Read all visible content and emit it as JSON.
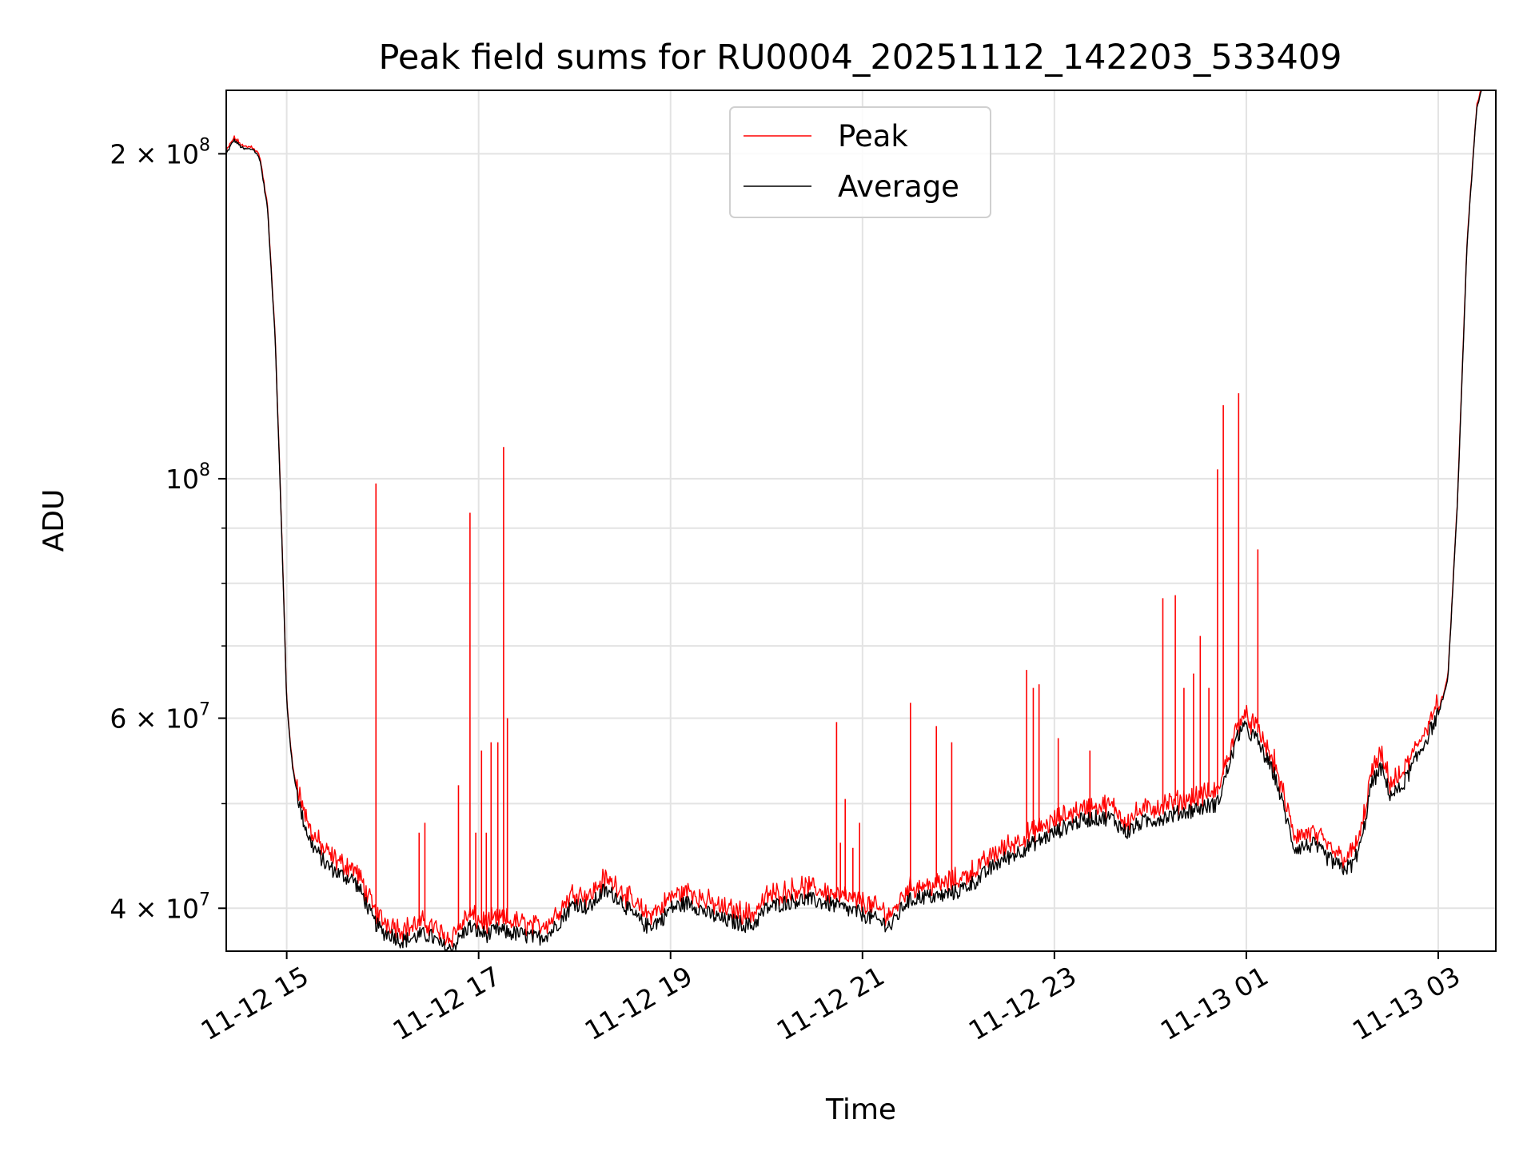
{
  "chart_data": {
    "type": "line",
    "title": "Peak field sums for RU0004_20251112_142203_533409",
    "xlabel": "Time",
    "ylabel": "ADU",
    "yscale": "log",
    "grid": true,
    "legend_position": "top-center",
    "x_unit": "hours since 11-12 00:00",
    "xlim": [
      14.37,
      27.6
    ],
    "ylim": [
      36500000,
      229000000
    ],
    "x_ticks": [
      {
        "value": 15,
        "label": "11-12 15"
      },
      {
        "value": 17,
        "label": "11-12 17"
      },
      {
        "value": 19,
        "label": "11-12 19"
      },
      {
        "value": 21,
        "label": "11-12 21"
      },
      {
        "value": 23,
        "label": "11-12 23"
      },
      {
        "value": 25,
        "label": "11-13 01"
      },
      {
        "value": 27,
        "label": "11-13 03"
      }
    ],
    "y_major_ticks": [
      {
        "value": 40000000,
        "mantissa": "4",
        "exponent": "7"
      },
      {
        "value": 60000000,
        "mantissa": "6",
        "exponent": "7"
      },
      {
        "value": 100000000,
        "mantissa": "",
        "exponent": "8"
      },
      {
        "value": 200000000,
        "mantissa": "2",
        "exponent": "8"
      }
    ],
    "y_minor_ticks": [
      50000000,
      70000000,
      80000000,
      90000000
    ],
    "series": [
      {
        "name": "Peak",
        "color": "#ff0000",
        "baseline_offset": 0.03,
        "spikes": [
          {
            "x": 15.93,
            "y": 99000000
          },
          {
            "x": 16.38,
            "y": 47000000
          },
          {
            "x": 16.44,
            "y": 48000000
          },
          {
            "x": 16.79,
            "y": 52000000
          },
          {
            "x": 16.91,
            "y": 93000000
          },
          {
            "x": 16.97,
            "y": 47000000
          },
          {
            "x": 17.03,
            "y": 56000000
          },
          {
            "x": 17.08,
            "y": 47000000
          },
          {
            "x": 17.13,
            "y": 57000000
          },
          {
            "x": 17.2,
            "y": 57000000
          },
          {
            "x": 17.26,
            "y": 107000000
          },
          {
            "x": 17.3,
            "y": 60000000
          },
          {
            "x": 20.73,
            "y": 59500000
          },
          {
            "x": 20.77,
            "y": 46000000
          },
          {
            "x": 20.82,
            "y": 50500000
          },
          {
            "x": 20.9,
            "y": 45500000
          },
          {
            "x": 20.97,
            "y": 48000000
          },
          {
            "x": 21.5,
            "y": 62000000
          },
          {
            "x": 21.77,
            "y": 59000000
          },
          {
            "x": 21.93,
            "y": 57000000
          },
          {
            "x": 22.71,
            "y": 66500000
          },
          {
            "x": 22.78,
            "y": 64000000
          },
          {
            "x": 22.84,
            "y": 64500000
          },
          {
            "x": 23.04,
            "y": 57500000
          },
          {
            "x": 23.37,
            "y": 56000000
          },
          {
            "x": 24.13,
            "y": 77500000
          },
          {
            "x": 24.26,
            "y": 78000000
          },
          {
            "x": 24.35,
            "y": 64000000
          },
          {
            "x": 24.45,
            "y": 66000000
          },
          {
            "x": 24.52,
            "y": 71500000
          },
          {
            "x": 24.61,
            "y": 64000000
          },
          {
            "x": 24.7,
            "y": 102000000
          },
          {
            "x": 24.76,
            "y": 117000000
          },
          {
            "x": 24.92,
            "y": 120000000
          },
          {
            "x": 25.12,
            "y": 86000000
          }
        ]
      },
      {
        "name": "Average",
        "color": "#000000",
        "points": [
          [
            14.37,
            200000000
          ],
          [
            14.45,
            206000000
          ],
          [
            14.55,
            202000000
          ],
          [
            14.65,
            202000000
          ],
          [
            14.72,
            198000000
          ],
          [
            14.8,
            178000000
          ],
          [
            14.88,
            135000000
          ],
          [
            14.95,
            88000000
          ],
          [
            15.0,
            62000000
          ],
          [
            15.06,
            54000000
          ],
          [
            15.15,
            49000000
          ],
          [
            15.25,
            46000000
          ],
          [
            15.4,
            44000000
          ],
          [
            15.55,
            43000000
          ],
          [
            15.7,
            42500000
          ],
          [
            15.8,
            41000000
          ],
          [
            15.9,
            39000000
          ],
          [
            16.0,
            38000000
          ],
          [
            16.1,
            37800000
          ],
          [
            16.2,
            37300000
          ],
          [
            16.3,
            37500000
          ],
          [
            16.4,
            37800000
          ],
          [
            16.5,
            37700000
          ],
          [
            16.6,
            37000000
          ],
          [
            16.7,
            36600000
          ],
          [
            16.8,
            37500000
          ],
          [
            16.9,
            38500000
          ],
          [
            17.0,
            38000000
          ],
          [
            17.1,
            37800000
          ],
          [
            17.2,
            38200000
          ],
          [
            17.3,
            38000000
          ],
          [
            17.45,
            37800000
          ],
          [
            17.6,
            37500000
          ],
          [
            17.75,
            38000000
          ],
          [
            17.9,
            39500000
          ],
          [
            18.0,
            40500000
          ],
          [
            18.15,
            40000000
          ],
          [
            18.3,
            41500000
          ],
          [
            18.45,
            41000000
          ],
          [
            18.6,
            39500000
          ],
          [
            18.75,
            38500000
          ],
          [
            18.9,
            39000000
          ],
          [
            19.0,
            40000000
          ],
          [
            19.2,
            40500000
          ],
          [
            19.4,
            39500000
          ],
          [
            19.55,
            39000000
          ],
          [
            19.7,
            38800000
          ],
          [
            19.85,
            38500000
          ],
          [
            20.0,
            40000000
          ],
          [
            20.2,
            40500000
          ],
          [
            20.4,
            40800000
          ],
          [
            20.6,
            40500000
          ],
          [
            20.8,
            40000000
          ],
          [
            21.0,
            39500000
          ],
          [
            21.15,
            39000000
          ],
          [
            21.3,
            38500000
          ],
          [
            21.45,
            40500000
          ],
          [
            21.6,
            41000000
          ],
          [
            21.8,
            41000000
          ],
          [
            22.0,
            41500000
          ],
          [
            22.2,
            42500000
          ],
          [
            22.4,
            44000000
          ],
          [
            22.6,
            45000000
          ],
          [
            22.8,
            46000000
          ],
          [
            23.0,
            47000000
          ],
          [
            23.2,
            48000000
          ],
          [
            23.4,
            48500000
          ],
          [
            23.6,
            48500000
          ],
          [
            23.75,
            47000000
          ],
          [
            23.9,
            48000000
          ],
          [
            24.1,
            48500000
          ],
          [
            24.3,
            49000000
          ],
          [
            24.5,
            49500000
          ],
          [
            24.7,
            50000000
          ],
          [
            24.85,
            55500000
          ],
          [
            24.95,
            59000000
          ],
          [
            25.1,
            57500000
          ],
          [
            25.3,
            53000000
          ],
          [
            25.5,
            45500000
          ],
          [
            25.7,
            45800000
          ],
          [
            25.85,
            44500000
          ],
          [
            26.0,
            43500000
          ],
          [
            26.1,
            43800000
          ],
          [
            26.2,
            46000000
          ],
          [
            26.3,
            52000000
          ],
          [
            26.4,
            54000000
          ],
          [
            26.5,
            51000000
          ],
          [
            26.6,
            51500000
          ],
          [
            26.75,
            54500000
          ],
          [
            26.9,
            58000000
          ],
          [
            27.0,
            60500000
          ],
          [
            27.1,
            65000000
          ],
          [
            27.2,
            95000000
          ],
          [
            27.3,
            165000000
          ],
          [
            27.4,
            220000000
          ],
          [
            27.45,
            229000000
          ]
        ]
      }
    ]
  }
}
